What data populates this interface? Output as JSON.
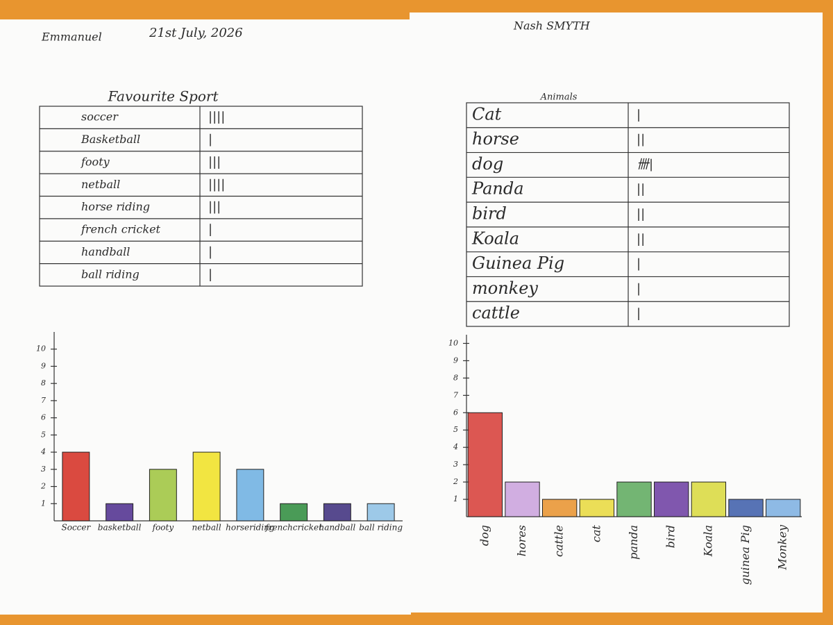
{
  "sheets": [
    {
      "name": "Emmanuel",
      "date": "21st July, 2026",
      "table": {
        "title": "Favourite Sport",
        "rows": [
          [
            "soccer",
            "||||"
          ],
          [
            "Basketball",
            "|"
          ],
          [
            "footy",
            "|||"
          ],
          [
            "netball",
            "||||"
          ],
          [
            "horse riding",
            "|||"
          ],
          [
            "french cricket",
            "|"
          ],
          [
            "handball",
            "|"
          ],
          [
            "ball riding",
            "|"
          ]
        ]
      }
    },
    {
      "name": "Nash SMYTH",
      "table": {
        "title": "Animals",
        "rows": [
          [
            "Cat",
            "|"
          ],
          [
            "horse",
            "||"
          ],
          [
            "dog",
            "卌|"
          ],
          [
            "Panda",
            "||"
          ],
          [
            "bird",
            "||"
          ],
          [
            "Koala",
            "||"
          ],
          [
            "Guinea Pig",
            "|"
          ],
          [
            "monkey",
            "|"
          ],
          [
            "cattle",
            "|"
          ]
        ]
      }
    }
  ],
  "chart_data": [
    {
      "type": "bar",
      "categories": [
        "Soccer",
        "basketball",
        "footy",
        "netball",
        "horseriding",
        "frenchcricket",
        "handball",
        "ball riding"
      ],
      "values": [
        4,
        1,
        3,
        4,
        3,
        1,
        1,
        1
      ],
      "colors": [
        "#d42a1e",
        "#4b2a8c",
        "#9cc33a",
        "#f0e020",
        "#6aaee0",
        "#2a8a3a",
        "#3a2a7a",
        "#8cc0e4"
      ],
      "ylim": [
        0,
        11
      ],
      "yticks": [
        1,
        2,
        3,
        4,
        5,
        6,
        7,
        8,
        9,
        10
      ]
    },
    {
      "type": "bar",
      "categories": [
        "dog",
        "hores",
        "cattle",
        "cat",
        "panda",
        "bird",
        "Koala",
        "guinea Pig",
        "Monkey"
      ],
      "values": [
        6,
        2,
        1,
        1,
        2,
        2,
        2,
        1,
        1
      ],
      "colors": [
        "#d63a34",
        "#c9a0dc",
        "#e8902a",
        "#e8d83a",
        "#5aa85a",
        "#6a3aa0",
        "#d8d83a",
        "#3a5aa8",
        "#7aaee0"
      ],
      "ylim": [
        0,
        10.5
      ],
      "yticks": [
        1,
        2,
        3,
        4,
        5,
        6,
        7,
        8,
        9,
        10
      ]
    }
  ]
}
